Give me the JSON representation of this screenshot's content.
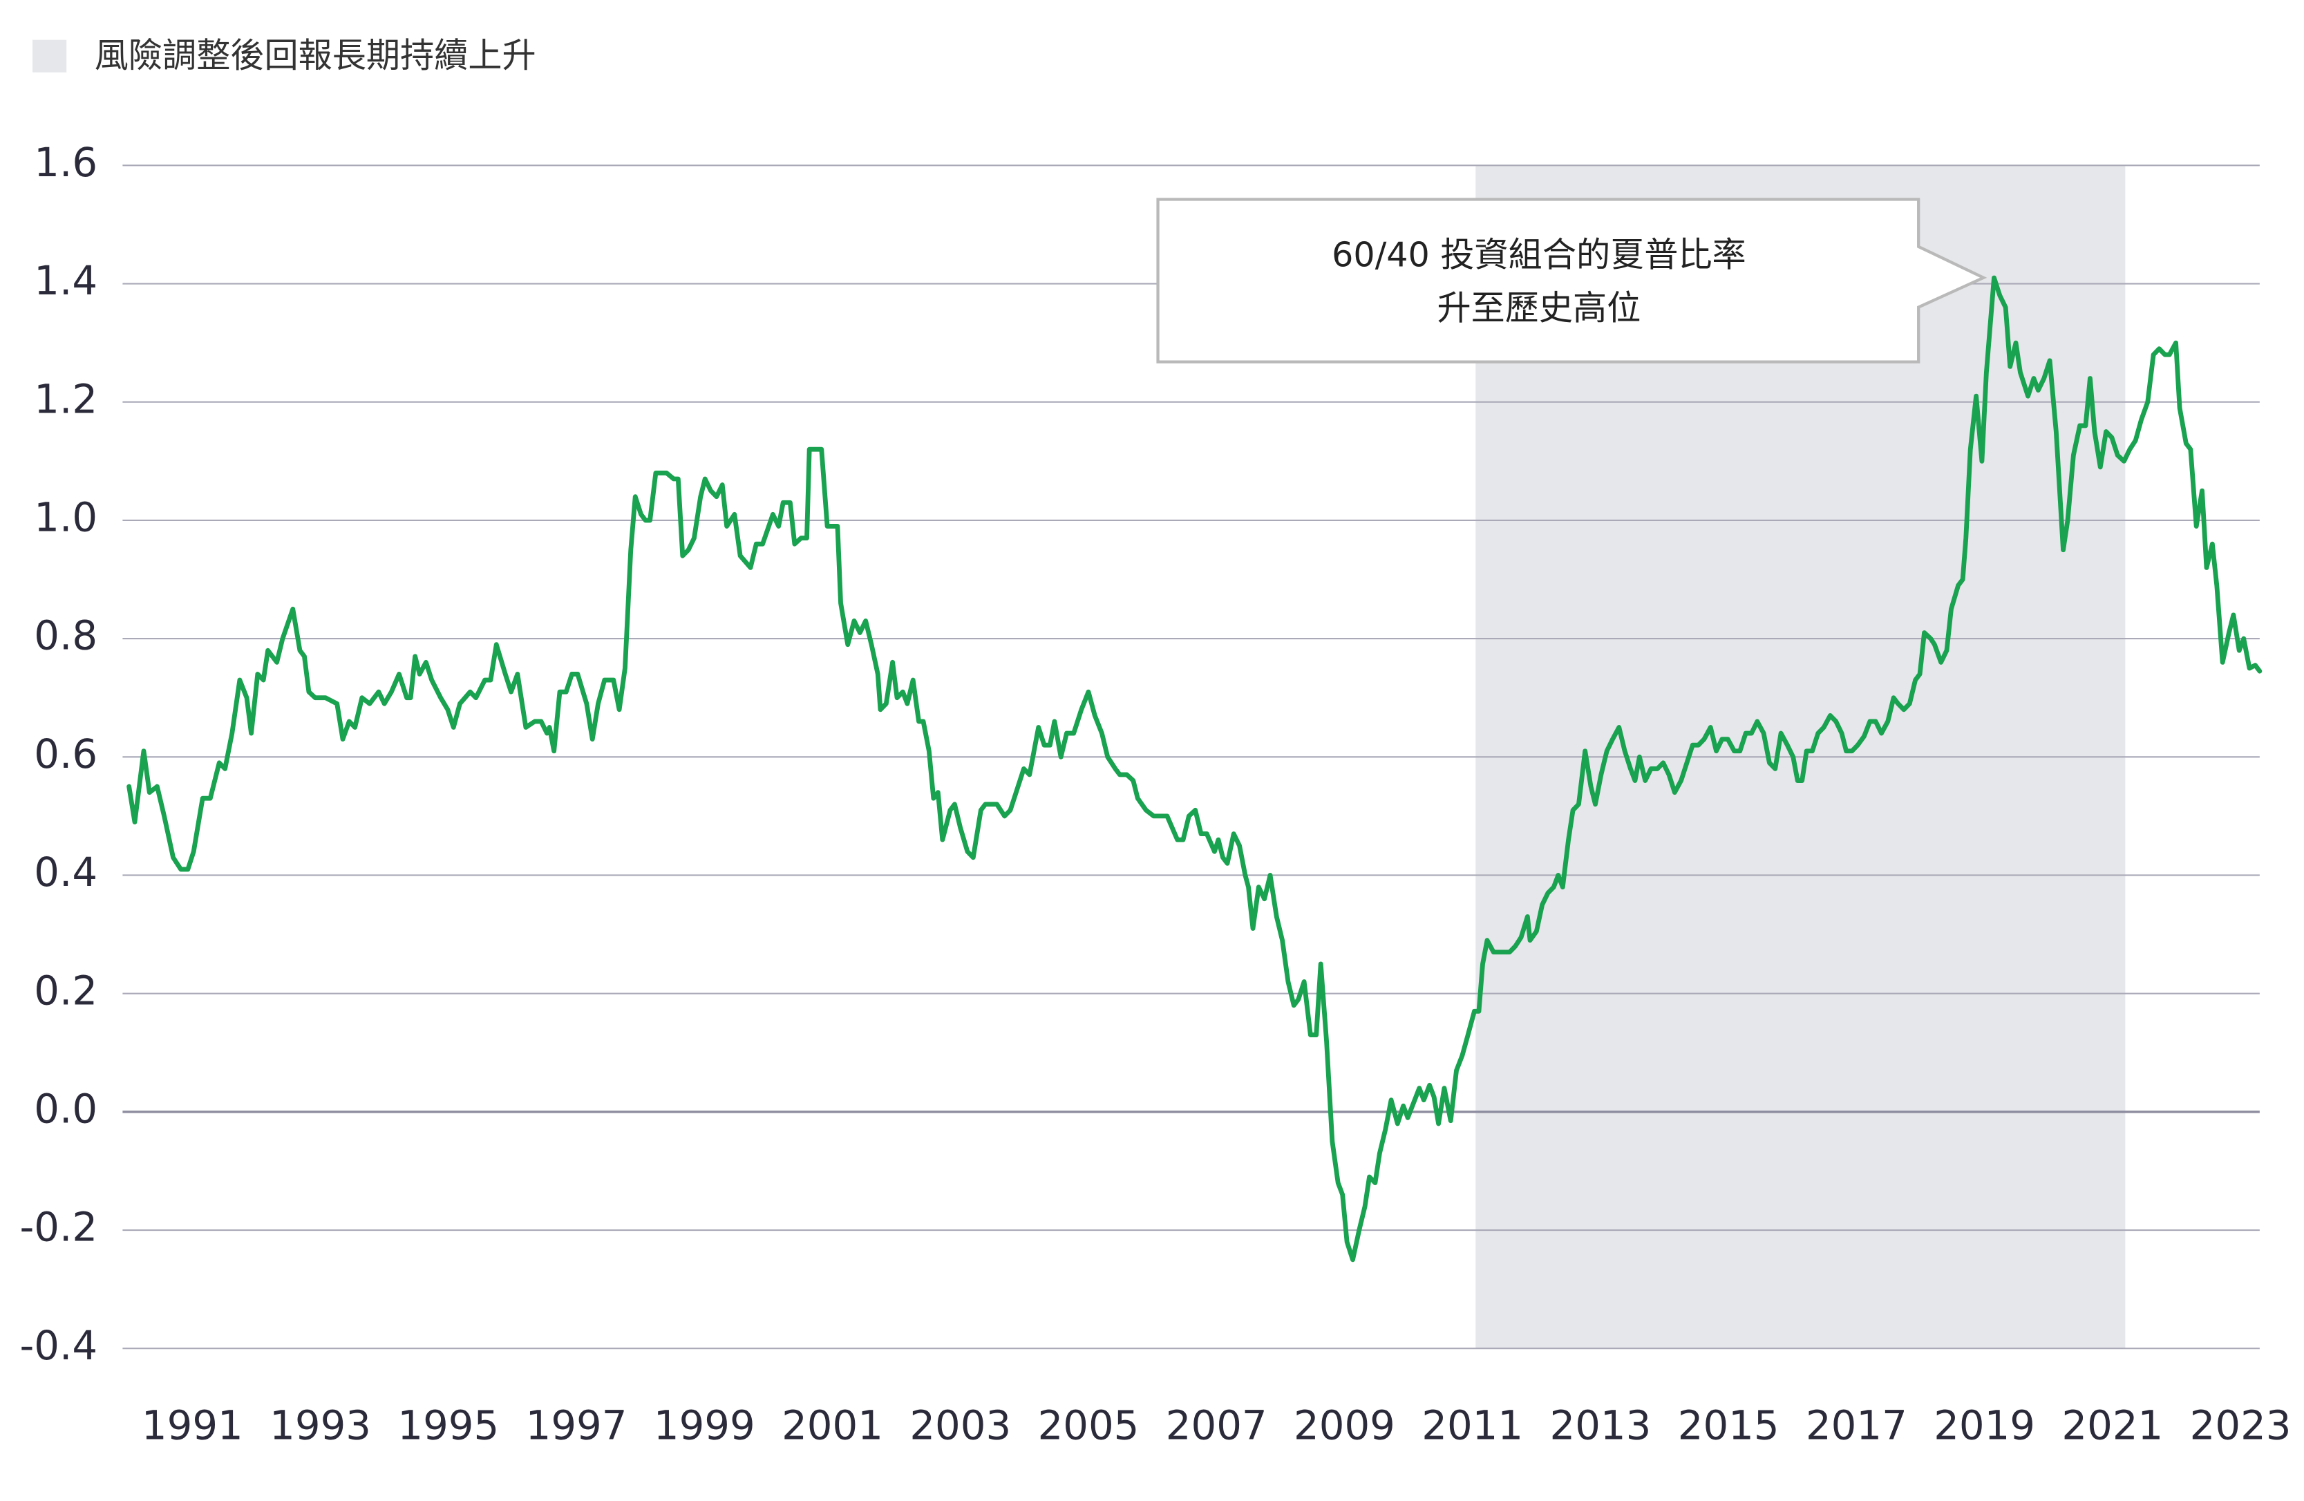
{
  "chart_data": {
    "type": "line",
    "legend_label": "風險調整後回報長期持續上升",
    "annotation": [
      "60/40 投資組合的夏普比率",
      "升至歷史高位"
    ],
    "shaded_range": [
      2011.05,
      2021.2
    ],
    "shade_color": "#e6e7ea",
    "color": "#19a24f",
    "grid": true,
    "xlim": [
      1989.91,
      2023.3
    ],
    "ylim": [
      -0.4,
      1.6
    ],
    "xticks": [
      1991,
      1993,
      1995,
      1997,
      1999,
      2001,
      2003,
      2005,
      2007,
      2009,
      2011,
      2013,
      2015,
      2017,
      2019,
      2021,
      2023
    ],
    "yticks": [
      1.6,
      1.4,
      1.2,
      {
        "value": 1,
        "label": "1.0"
      },
      0.8,
      0.6,
      0.4,
      0.2,
      {
        "value": 0,
        "label": "0.0"
      },
      -0.2,
      -0.4
    ],
    "x": [
      1990.01,
      1990.1,
      1990.24,
      1990.33,
      1990.45,
      1990.56,
      1990.7,
      1990.82,
      1990.93,
      1991.02,
      1991.16,
      1991.28,
      1991.42,
      1991.51,
      1991.62,
      1991.74,
      1991.85,
      1991.92,
      1992.02,
      1992.11,
      1992.18,
      1992.32,
      1992.41,
      1992.57,
      1992.68,
      1992.75,
      1992.82,
      1992.92,
      1993.08,
      1993.26,
      1993.35,
      1993.45,
      1993.54,
      1993.65,
      1993.77,
      1993.91,
      1994.0,
      1994.11,
      1994.23,
      1994.35,
      1994.41,
      1994.48,
      1994.55,
      1994.65,
      1994.74,
      1994.88,
      1994.99,
      1995.08,
      1995.18,
      1995.34,
      1995.43,
      1995.57,
      1995.66,
      1995.75,
      1995.89,
      1995.98,
      1996.08,
      1996.21,
      1996.35,
      1996.45,
      1996.54,
      1996.58,
      1996.65,
      1996.74,
      1996.84,
      1996.93,
      1997.02,
      1997.16,
      1997.25,
      1997.34,
      1997.44,
      1997.58,
      1997.67,
      1997.76,
      1997.85,
      1997.92,
      1998.01,
      1998.08,
      1998.15,
      1998.24,
      1998.41,
      1998.52,
      1998.59,
      1998.66,
      1998.75,
      1998.84,
      1998.94,
      1999.01,
      1999.1,
      1999.19,
      1999.28,
      1999.35,
      1999.47,
      1999.56,
      1999.72,
      1999.81,
      1999.91,
      2000.07,
      2000.16,
      2000.23,
      2000.34,
      2000.41,
      2000.51,
      2000.6,
      2000.64,
      2000.83,
      2000.92,
      2001.08,
      2001.13,
      2001.24,
      2001.34,
      2001.43,
      2001.52,
      2001.61,
      2001.71,
      2001.75,
      2001.84,
      2001.94,
      2002.01,
      2002.1,
      2002.17,
      2002.26,
      2002.35,
      2002.42,
      2002.51,
      2002.58,
      2002.65,
      2002.72,
      2002.84,
      2002.91,
      2003.0,
      2003.11,
      2003.2,
      2003.32,
      2003.39,
      2003.57,
      2003.69,
      2003.78,
      2003.87,
      2003.99,
      2004.08,
      2004.22,
      2004.31,
      2004.4,
      2004.47,
      2004.57,
      2004.66,
      2004.77,
      2004.89,
      2005.0,
      2005.1,
      2005.21,
      2005.3,
      2005.42,
      2005.49,
      2005.6,
      2005.7,
      2005.77,
      2005.9,
      2006.02,
      2006.13,
      2006.23,
      2006.39,
      2006.48,
      2006.57,
      2006.67,
      2006.76,
      2006.85,
      2006.97,
      2007.03,
      2007.1,
      2007.17,
      2007.27,
      2007.36,
      2007.45,
      2007.5,
      2007.57,
      2007.66,
      2007.75,
      2007.84,
      2007.94,
      2008.03,
      2008.12,
      2008.21,
      2008.28,
      2008.37,
      2008.47,
      2008.56,
      2008.63,
      2008.72,
      2008.81,
      2008.9,
      2008.97,
      2009.04,
      2009.13,
      2009.23,
      2009.32,
      2009.39,
      2009.48,
      2009.55,
      2009.64,
      2009.73,
      2009.83,
      2009.92,
      2009.99,
      2010.08,
      2010.17,
      2010.24,
      2010.33,
      2010.4,
      2010.47,
      2010.56,
      2010.66,
      2010.75,
      2010.84,
      2010.93,
      2011.03,
      2011.1,
      2011.16,
      2011.23,
      2011.33,
      2011.49,
      2011.58,
      2011.67,
      2011.76,
      2011.86,
      2011.9,
      2012.0,
      2012.09,
      2012.18,
      2012.27,
      2012.34,
      2012.41,
      2012.5,
      2012.57,
      2012.66,
      2012.76,
      2012.85,
      2012.92,
      2013.01,
      2013.1,
      2013.19,
      2013.29,
      2013.38,
      2013.47,
      2013.54,
      2013.61,
      2013.7,
      2013.79,
      2013.89,
      2013.98,
      2014.07,
      2014.16,
      2014.26,
      2014.35,
      2014.44,
      2014.53,
      2014.62,
      2014.72,
      2014.81,
      2014.9,
      2014.99,
      2015.09,
      2015.18,
      2015.27,
      2015.36,
      2015.45,
      2015.55,
      2015.64,
      2015.73,
      2015.82,
      2015.92,
      2016.01,
      2016.08,
      2016.15,
      2016.22,
      2016.31,
      2016.4,
      2016.49,
      2016.59,
      2016.68,
      2016.77,
      2016.84,
      2016.93,
      2017.02,
      2017.12,
      2017.21,
      2017.3,
      2017.39,
      2017.49,
      2017.58,
      2017.65,
      2017.74,
      2017.83,
      2017.92,
      2017.99,
      2018.06,
      2018.16,
      2018.22,
      2018.32,
      2018.41,
      2018.48,
      2018.59,
      2018.66,
      2018.71,
      2018.78,
      2018.87,
      2018.96,
      2019.03,
      2019.15,
      2019.24,
      2019.33,
      2019.4,
      2019.49,
      2019.56,
      2019.68,
      2019.77,
      2019.84,
      2019.93,
      2020.02,
      2020.12,
      2020.23,
      2020.3,
      2020.39,
      2020.49,
      2020.58,
      2020.65,
      2020.72,
      2020.81,
      2020.9,
      2020.99,
      2021.08,
      2021.18,
      2021.27,
      2021.36,
      2021.45,
      2021.55,
      2021.64,
      2021.73,
      2021.82,
      2021.89,
      2021.99,
      2022.05,
      2022.15,
      2022.22,
      2022.31,
      2022.4,
      2022.47,
      2022.56,
      2022.63,
      2022.72,
      2022.82,
      2022.89,
      2022.98,
      2023.05,
      2023.14,
      2023.23,
      2023.3
    ],
    "values": [
      0.55,
      0.49,
      0.61,
      0.54,
      0.55,
      0.5,
      0.43,
      0.41,
      0.41,
      0.44,
      0.53,
      0.53,
      0.59,
      0.58,
      0.64,
      0.73,
      0.7,
      0.64,
      0.74,
      0.73,
      0.78,
      0.76,
      0.8,
      0.85,
      0.78,
      0.77,
      0.71,
      0.7,
      0.7,
      0.69,
      0.63,
      0.66,
      0.65,
      0.7,
      0.69,
      0.71,
      0.69,
      0.71,
      0.74,
      0.7,
      0.7,
      0.77,
      0.74,
      0.76,
      0.73,
      0.7,
      0.68,
      0.65,
      0.69,
      0.71,
      0.7,
      0.73,
      0.73,
      0.79,
      0.74,
      0.71,
      0.74,
      0.65,
      0.66,
      0.66,
      0.64,
      0.65,
      0.61,
      0.71,
      0.71,
      0.74,
      0.74,
      0.69,
      0.63,
      0.69,
      0.73,
      0.73,
      0.68,
      0.75,
      0.95,
      1.04,
      1.01,
      1.0,
      1.0,
      1.08,
      1.08,
      1.07,
      1.07,
      0.94,
      0.95,
      0.97,
      1.04,
      1.07,
      1.05,
      1.04,
      1.06,
      0.99,
      1.01,
      0.94,
      0.92,
      0.96,
      0.96,
      1.01,
      0.99,
      1.03,
      1.03,
      0.96,
      0.97,
      0.97,
      1.12,
      1.12,
      0.99,
      0.99,
      0.86,
      0.79,
      0.83,
      0.81,
      0.83,
      0.79,
      0.74,
      0.68,
      0.69,
      0.76,
      0.7,
      0.71,
      0.69,
      0.73,
      0.66,
      0.66,
      0.61,
      0.53,
      0.54,
      0.46,
      0.51,
      0.52,
      0.48,
      0.44,
      0.43,
      0.51,
      0.52,
      0.52,
      0.5,
      0.51,
      0.54,
      0.58,
      0.57,
      0.65,
      0.62,
      0.62,
      0.66,
      0.6,
      0.64,
      0.64,
      0.68,
      0.71,
      0.67,
      0.64,
      0.6,
      0.58,
      0.57,
      0.57,
      0.56,
      0.53,
      0.51,
      0.5,
      0.5,
      0.5,
      0.46,
      0.46,
      0.5,
      0.51,
      0.47,
      0.47,
      0.44,
      0.46,
      0.43,
      0.42,
      0.47,
      0.45,
      0.4,
      0.38,
      0.31,
      0.38,
      0.36,
      0.4,
      0.33,
      0.29,
      0.22,
      0.18,
      0.19,
      0.22,
      0.13,
      0.13,
      0.25,
      0.12,
      -0.05,
      -0.12,
      -0.14,
      -0.22,
      -0.25,
      -0.2,
      -0.16,
      -0.11,
      -0.12,
      -0.07,
      -0.03,
      0.02,
      -0.02,
      0.01,
      -0.01,
      0.015,
      0.04,
      0.02,
      0.045,
      0.025,
      -0.02,
      0.04,
      -0.015,
      0.07,
      0.095,
      0.13,
      0.17,
      0.17,
      0.25,
      0.29,
      0.27,
      0.27,
      0.27,
      0.28,
      0.295,
      0.33,
      0.29,
      0.305,
      0.35,
      0.37,
      0.38,
      0.4,
      0.38,
      0.46,
      0.51,
      0.52,
      0.61,
      0.55,
      0.52,
      0.57,
      0.61,
      0.63,
      0.65,
      0.61,
      0.58,
      0.56,
      0.6,
      0.56,
      0.58,
      0.58,
      0.59,
      0.57,
      0.54,
      0.56,
      0.59,
      0.62,
      0.62,
      0.63,
      0.65,
      0.61,
      0.63,
      0.63,
      0.61,
      0.61,
      0.64,
      0.64,
      0.66,
      0.64,
      0.59,
      0.58,
      0.64,
      0.62,
      0.6,
      0.56,
      0.56,
      0.61,
      0.61,
      0.64,
      0.65,
      0.67,
      0.66,
      0.64,
      0.61,
      0.61,
      0.62,
      0.635,
      0.66,
      0.66,
      0.64,
      0.66,
      0.7,
      0.69,
      0.68,
      0.69,
      0.73,
      0.74,
      0.81,
      0.8,
      0.79,
      0.76,
      0.78,
      0.85,
      0.89,
      0.9,
      0.97,
      1.12,
      1.21,
      1.1,
      1.25,
      1.41,
      1.38,
      1.36,
      1.26,
      1.3,
      1.25,
      1.21,
      1.24,
      1.22,
      1.24,
      1.27,
      1.15,
      0.95,
      1.0,
      1.11,
      1.16,
      1.16,
      1.24,
      1.15,
      1.09,
      1.15,
      1.14,
      1.11,
      1.1,
      1.12,
      1.135,
      1.17,
      1.2,
      1.28,
      1.29,
      1.28,
      1.28,
      1.3,
      1.19,
      1.13,
      1.12,
      0.99,
      1.05,
      0.92,
      0.96,
      0.89,
      0.76,
      0.81,
      0.84,
      0.78,
      0.8,
      0.75,
      0.755,
      0.745
    ]
  }
}
